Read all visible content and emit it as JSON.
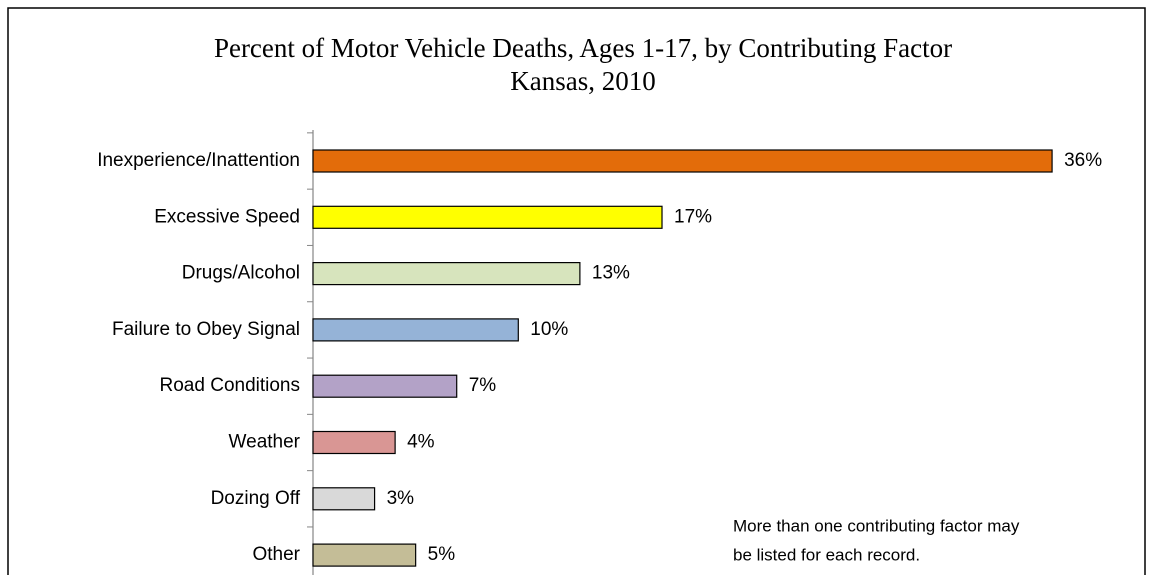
{
  "chart_data": {
    "type": "barh",
    "title": [
      "Percent of Motor Vehicle Deaths, Ages 1-17, by Contributing Factor",
      "Kansas, 2010"
    ],
    "categories": [
      "Inexperience/Inattention",
      "Excessive Speed",
      "Drugs/Alcohol",
      "Failure to Obey Signal",
      "Road Conditions",
      "Weather",
      "Dozing Off",
      "Other"
    ],
    "values": [
      36,
      17,
      13,
      10,
      7,
      4,
      3,
      5
    ],
    "value_labels": [
      "36%",
      "17%",
      "13%",
      "10%",
      "7%",
      "4%",
      "3%",
      "5%"
    ],
    "colors": [
      "#e36c0a",
      "#ffff00",
      "#d7e4bd",
      "#95b3d7",
      "#b3a2c7",
      "#d99694",
      "#d9d9d9",
      "#c4bd97"
    ],
    "note": [
      "More than one contributing factor may",
      "be listed for each record."
    ]
  }
}
